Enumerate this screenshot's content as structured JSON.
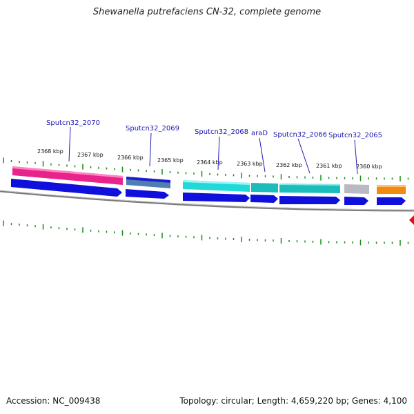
{
  "title": "Shewanella putrefaciens CN-32, complete genome",
  "footer": {
    "accession": "Accession: NC_009438",
    "summary": "Topology: circular; Length: 4,659,220 bp; Genes: 4,100"
  },
  "scale_labels": [
    "2368 kbp",
    "2367 kbp",
    "2366 kbp",
    "2365 kbp",
    "2364 kbp",
    "2363 kbp",
    "2362 kbp",
    "2361 kbp",
    "2360 kbp"
  ],
  "gene_labels": [
    "Sputcn32_2070",
    "Sputcn32_2069",
    "Sputcn32_2068",
    "araD",
    "Sputcn32_2066",
    "Sputcn32_2065"
  ],
  "colors": {
    "gene_blue": "#1010dd",
    "pink": "#e8238c",
    "slate": "#4f7fb0",
    "cyan": "#22d8d8",
    "teal": "#1bbcbc",
    "gray": "#b9b9c2",
    "orange": "#f08a10",
    "tick_green": "#1a8a1a",
    "backbone": "#7a7a7a",
    "label_blue": "#1a1ab0",
    "marker_red": "#e01010"
  }
}
